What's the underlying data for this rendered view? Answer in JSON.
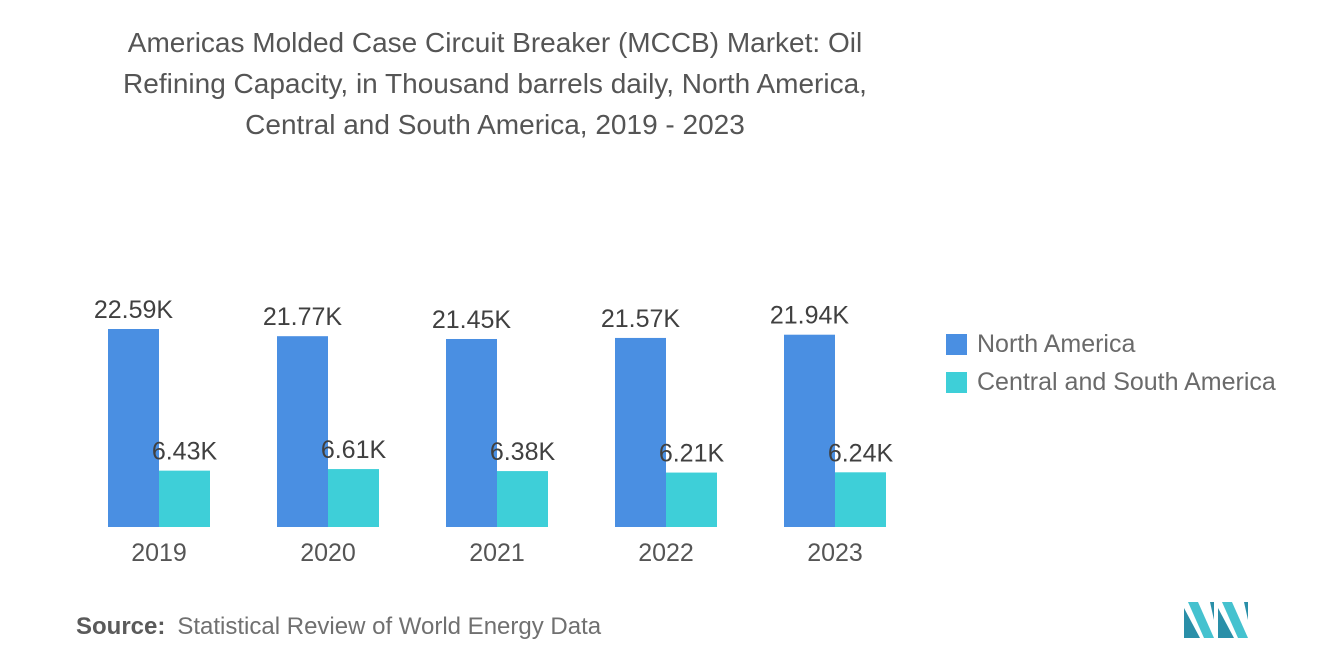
{
  "title_lines": [
    "Americas Molded Case Circuit Breaker (MCCB) Market: Oil",
    "Refining Capacity, in Thousand barrels daily, North America,",
    "Central and South America, 2019 - 2023"
  ],
  "chart_data": {
    "type": "bar",
    "title": "Americas Molded Case Circuit Breaker (MCCB) Market: Oil Refining Capacity, in Thousand barrels daily, North America, Central and South America, 2019 - 2023",
    "categories": [
      "2019",
      "2020",
      "2021",
      "2022",
      "2023"
    ],
    "series": [
      {
        "name": "North America",
        "color": "#4a8fe2",
        "values": [
          22.59,
          21.77,
          21.45,
          21.57,
          21.94
        ],
        "labels": [
          "22.59K",
          "21.77K",
          "21.45K",
          "21.57K",
          "21.94K"
        ]
      },
      {
        "name": "Central and South America",
        "color": "#3ecfd8",
        "values": [
          6.43,
          6.61,
          6.38,
          6.21,
          6.24
        ],
        "labels": [
          "6.43K",
          "6.61K",
          "6.38K",
          "6.21K",
          "6.24K"
        ]
      }
    ],
    "xlabel": "",
    "ylabel": "",
    "ylim": [
      0,
      22.59
    ],
    "legend_position": "right"
  },
  "source": {
    "label": "Source:",
    "text": "Statistical Review of World Energy Data"
  }
}
